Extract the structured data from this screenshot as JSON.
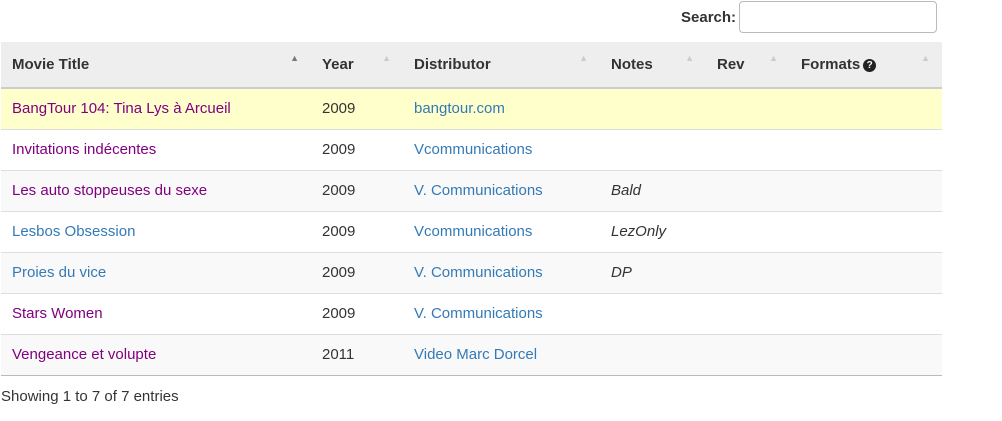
{
  "search": {
    "label": "Search:",
    "value": ""
  },
  "columns": [
    {
      "label": "Movie Title",
      "sorted": true
    },
    {
      "label": "Year"
    },
    {
      "label": "Distributor"
    },
    {
      "label": "Notes"
    },
    {
      "label": "Rev"
    },
    {
      "label": "Formats",
      "icon": "question-circle-icon"
    }
  ],
  "rows": [
    {
      "title": "BangTour 104: Tina Lys à Arcueil",
      "visited": true,
      "year": "2009",
      "distributor": "bangtour.com",
      "notes": "",
      "highlight": true
    },
    {
      "title": "Invitations indécentes",
      "visited": true,
      "year": "2009",
      "distributor": "Vcommunications",
      "notes": ""
    },
    {
      "title": "Les auto stoppeuses du sexe",
      "visited": true,
      "year": "2009",
      "distributor": "V. Communications",
      "notes": "Bald"
    },
    {
      "title": "Lesbos Obsession",
      "visited": false,
      "year": "2009",
      "distributor": "Vcommunications",
      "notes": "LezOnly"
    },
    {
      "title": "Proies du vice",
      "visited": false,
      "year": "2009",
      "distributor": "V. Communications",
      "notes": "DP"
    },
    {
      "title": "Stars Women",
      "visited": true,
      "year": "2009",
      "distributor": "V. Communications",
      "notes": ""
    },
    {
      "title": "Vengeance et volupte",
      "visited": true,
      "year": "2011",
      "distributor": "Video Marc Dorcel",
      "notes": ""
    }
  ],
  "info": "Showing 1 to 7 of 7 entries",
  "colors": {
    "visited": "#800080",
    "link": "#337ab7",
    "highlight": "#ffffcc",
    "header": "#eeeeee"
  }
}
